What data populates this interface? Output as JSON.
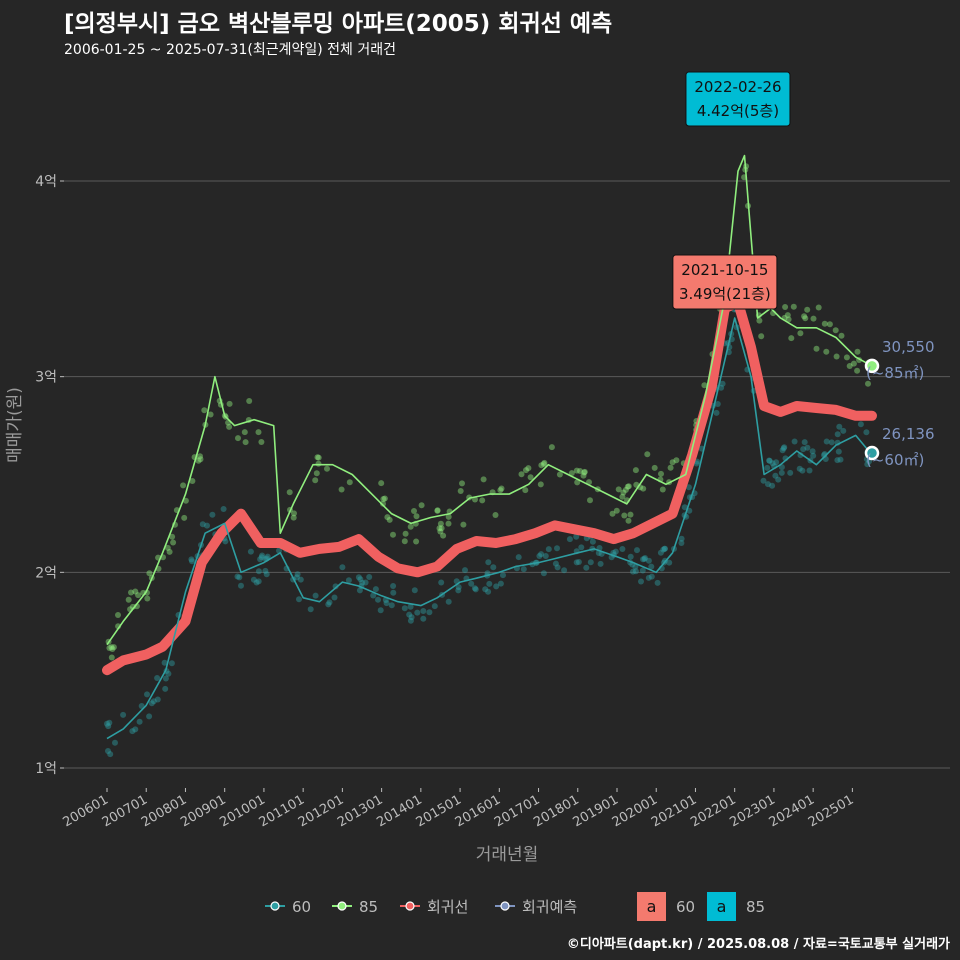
{
  "header": {
    "title": "[의정부시] 금오 벽산블루밍 아파트(2005) 회귀선 예측",
    "subtitle": "2006-01-25 ~ 2025-07-31(최근계약일) 전체 거래건"
  },
  "credit": "©디아파트(dapt.kr) / 2025.08.08 / 자료=국토교통부 실거래가",
  "colors": {
    "bg": "#262626",
    "grid": "#5a5a5a",
    "s60": "#2e9ea2",
    "s85": "#90ee7e",
    "regression": "#f06060",
    "prediction": "#7f94c0",
    "axis_text": "#bdbdbd",
    "annot_85_fill": "#00bcd4",
    "annot_60_fill": "#f47a6e"
  },
  "chart_data": {
    "type": "line",
    "xlabel": "거래년월",
    "ylabel": "매매가(원)",
    "x_domain": [
      "2006-01",
      "2025-12"
    ],
    "ylim": [
      0.95,
      4.7
    ],
    "y_ticks": [
      {
        "value": 1,
        "label": "1억"
      },
      {
        "value": 2,
        "label": "2억"
      },
      {
        "value": 3,
        "label": "3억"
      },
      {
        "value": 4,
        "label": "4억"
      }
    ],
    "x_ticks": [
      "200601",
      "200701",
      "200801",
      "200901",
      "201001",
      "201101",
      "201201",
      "201301",
      "201401",
      "201501",
      "201601",
      "201701",
      "201801",
      "201901",
      "202001",
      "202101",
      "202201",
      "202301",
      "202401",
      "202501"
    ],
    "series": [
      {
        "name": "60",
        "color": "#2e9ea2",
        "points": [
          [
            "2006-01",
            1.15
          ],
          [
            "2006-06",
            1.2
          ],
          [
            "2007-01",
            1.32
          ],
          [
            "2007-07",
            1.5
          ],
          [
            "2008-01",
            1.9
          ],
          [
            "2008-07",
            2.2
          ],
          [
            "2009-01",
            2.25
          ],
          [
            "2009-06",
            2.0
          ],
          [
            "2010-01",
            2.05
          ],
          [
            "2010-06",
            2.1
          ],
          [
            "2011-01",
            1.87
          ],
          [
            "2011-06",
            1.85
          ],
          [
            "2012-01",
            1.95
          ],
          [
            "2012-06",
            1.93
          ],
          [
            "2013-01",
            1.88
          ],
          [
            "2013-06",
            1.85
          ],
          [
            "2014-01",
            1.83
          ],
          [
            "2014-06",
            1.87
          ],
          [
            "2015-01",
            1.95
          ],
          [
            "2015-06",
            1.97
          ],
          [
            "2016-01",
            2.0
          ],
          [
            "2016-06",
            2.03
          ],
          [
            "2017-01",
            2.05
          ],
          [
            "2017-06",
            2.07
          ],
          [
            "2018-01",
            2.1
          ],
          [
            "2018-06",
            2.12
          ],
          [
            "2019-01",
            2.08
          ],
          [
            "2019-06",
            2.05
          ],
          [
            "2020-01",
            2.0
          ],
          [
            "2020-06",
            2.1
          ],
          [
            "2021-01",
            2.45
          ],
          [
            "2021-06",
            2.8
          ],
          [
            "2022-01",
            3.3
          ],
          [
            "2022-06",
            3.0
          ],
          [
            "2022-10",
            2.5
          ],
          [
            "2023-03",
            2.55
          ],
          [
            "2023-08",
            2.62
          ],
          [
            "2024-02",
            2.55
          ],
          [
            "2024-08",
            2.65
          ],
          [
            "2025-02",
            2.7
          ],
          [
            "2025-07",
            2.6
          ]
        ]
      },
      {
        "name": "85",
        "color": "#90ee7e",
        "points": [
          [
            "2006-01",
            1.63
          ],
          [
            "2006-06",
            1.75
          ],
          [
            "2007-01",
            1.9
          ],
          [
            "2007-06",
            2.1
          ],
          [
            "2008-01",
            2.4
          ],
          [
            "2008-07",
            2.75
          ],
          [
            "2008-10",
            3.0
          ],
          [
            "2009-01",
            2.8
          ],
          [
            "2009-04",
            2.75
          ],
          [
            "2009-10",
            2.78
          ],
          [
            "2010-04",
            2.75
          ],
          [
            "2010-06",
            2.2
          ],
          [
            "2010-10",
            2.35
          ],
          [
            "2011-04",
            2.55
          ],
          [
            "2011-10",
            2.55
          ],
          [
            "2012-04",
            2.5
          ],
          [
            "2012-10",
            2.4
          ],
          [
            "2013-04",
            2.3
          ],
          [
            "2013-10",
            2.25
          ],
          [
            "2014-04",
            2.28
          ],
          [
            "2014-10",
            2.3
          ],
          [
            "2015-04",
            2.38
          ],
          [
            "2015-10",
            2.4
          ],
          [
            "2016-04",
            2.4
          ],
          [
            "2016-10",
            2.45
          ],
          [
            "2017-04",
            2.55
          ],
          [
            "2017-10",
            2.5
          ],
          [
            "2018-04",
            2.45
          ],
          [
            "2018-10",
            2.4
          ],
          [
            "2019-04",
            2.35
          ],
          [
            "2019-10",
            2.5
          ],
          [
            "2020-04",
            2.45
          ],
          [
            "2020-10",
            2.5
          ],
          [
            "2021-04",
            2.9
          ],
          [
            "2021-10",
            3.4
          ],
          [
            "2022-02",
            4.05
          ],
          [
            "2022-04",
            4.13
          ],
          [
            "2022-08",
            3.3
          ],
          [
            "2022-12",
            3.35
          ],
          [
            "2023-03",
            3.3
          ],
          [
            "2023-08",
            3.25
          ],
          [
            "2024-02",
            3.25
          ],
          [
            "2024-08",
            3.2
          ],
          [
            "2025-02",
            3.1
          ],
          [
            "2025-07",
            3.055
          ]
        ]
      },
      {
        "name": "회귀선",
        "color": "#f06060",
        "points": [
          [
            "2006-01",
            1.5
          ],
          [
            "2006-06",
            1.55
          ],
          [
            "2007-01",
            1.58
          ],
          [
            "2007-06",
            1.62
          ],
          [
            "2008-01",
            1.75
          ],
          [
            "2008-06",
            2.05
          ],
          [
            "2008-12",
            2.2
          ],
          [
            "2009-06",
            2.3
          ],
          [
            "2009-12",
            2.15
          ],
          [
            "2010-06",
            2.15
          ],
          [
            "2010-12",
            2.1
          ],
          [
            "2011-06",
            2.12
          ],
          [
            "2011-12",
            2.13
          ],
          [
            "2012-06",
            2.17
          ],
          [
            "2012-12",
            2.08
          ],
          [
            "2013-06",
            2.02
          ],
          [
            "2013-12",
            2.0
          ],
          [
            "2014-06",
            2.03
          ],
          [
            "2014-12",
            2.12
          ],
          [
            "2015-06",
            2.16
          ],
          [
            "2015-12",
            2.15
          ],
          [
            "2016-06",
            2.17
          ],
          [
            "2016-12",
            2.2
          ],
          [
            "2017-06",
            2.24
          ],
          [
            "2017-12",
            2.22
          ],
          [
            "2018-06",
            2.2
          ],
          [
            "2018-12",
            2.17
          ],
          [
            "2019-06",
            2.2
          ],
          [
            "2019-12",
            2.25
          ],
          [
            "2020-06",
            2.3
          ],
          [
            "2020-12",
            2.6
          ],
          [
            "2021-06",
            2.95
          ],
          [
            "2021-10",
            3.35
          ],
          [
            "2022-02",
            3.38
          ],
          [
            "2022-06",
            3.15
          ],
          [
            "2022-10",
            2.85
          ],
          [
            "2023-03",
            2.82
          ],
          [
            "2023-08",
            2.85
          ],
          [
            "2024-02",
            2.84
          ],
          [
            "2024-08",
            2.83
          ],
          [
            "2025-02",
            2.8
          ],
          [
            "2025-07",
            2.8
          ]
        ]
      },
      {
        "name": "회귀예측",
        "color": "#7f94c0",
        "points": []
      }
    ],
    "annotations": [
      {
        "date_label": "2022-02-26",
        "value_label": "4.42억(5층)",
        "series": "85",
        "x": "2022-02",
        "y": 4.42
      },
      {
        "date_label": "2021-10-15",
        "value_label": "3.49억(21층)",
        "series": "60",
        "x": "2021-10",
        "y": 3.49
      }
    ],
    "end_labels": [
      {
        "series": "85",
        "value": "30,550",
        "area": "(~85㎡)",
        "y": 3.055
      },
      {
        "series": "60",
        "value": "26,136",
        "area": "(~60㎡)",
        "y": 2.61
      }
    ],
    "legend": {
      "position": "bottom",
      "line_items": [
        "60",
        "85",
        "회귀선",
        "회귀예측"
      ],
      "box_items": [
        {
          "glyph": "a",
          "label": "60",
          "fill": "#f47a6e"
        },
        {
          "glyph": "a",
          "label": "85",
          "fill": "#00bcd4"
        }
      ]
    }
  }
}
